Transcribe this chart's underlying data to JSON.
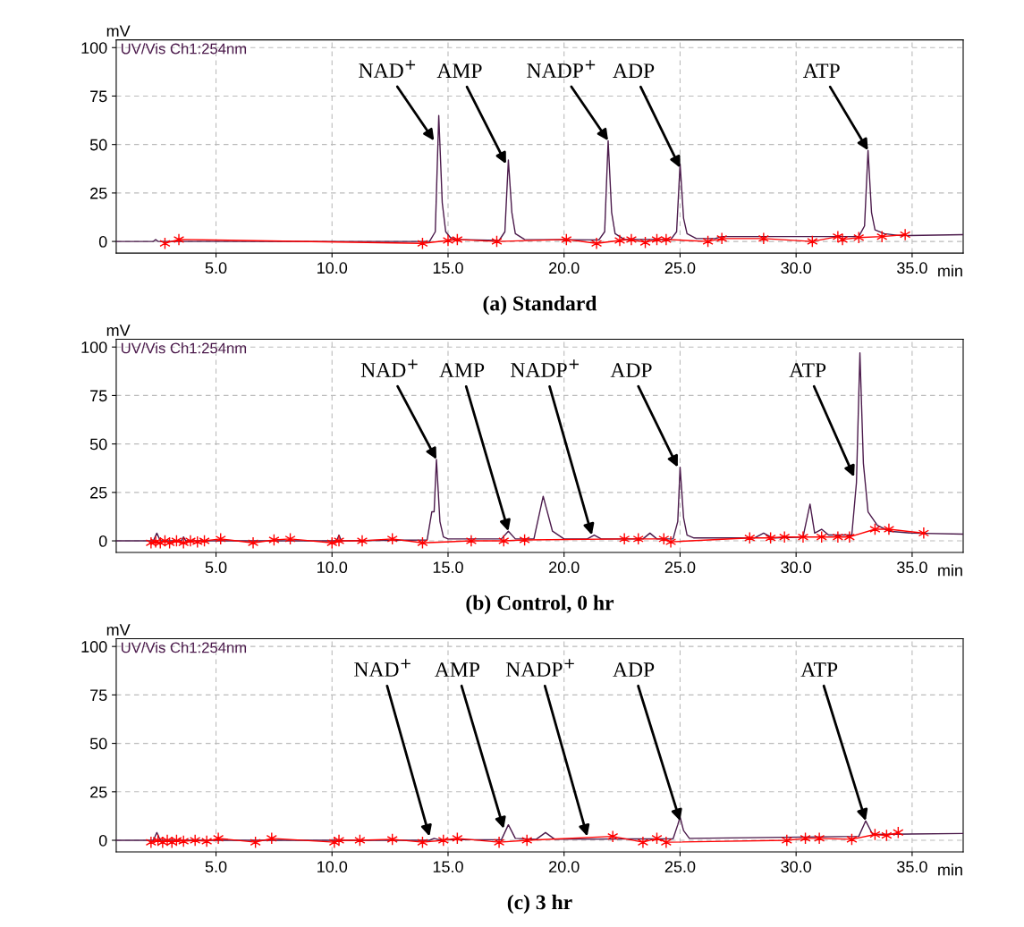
{
  "chart_data": [
    {
      "type": "line",
      "title": "(a) Standard",
      "xlabel": "min",
      "ylabel": "mV",
      "xlim": [
        0.7,
        37.2
      ],
      "ylim": [
        -6,
        104
      ],
      "xticks": [
        {
          "value": 5,
          "label": "5.0"
        },
        {
          "value": 10,
          "label": "10.0"
        },
        {
          "value": 15,
          "label": "15.0"
        },
        {
          "value": 20,
          "label": "20.0"
        },
        {
          "value": 25,
          "label": "25.0"
        },
        {
          "value": 30,
          "label": "30.0"
        },
        {
          "value": 35,
          "label": "35.0"
        }
      ],
      "yticks": [
        0,
        25,
        50,
        75,
        100
      ],
      "grid": true,
      "legend": false,
      "line_style": "solid",
      "series": [
        {
          "name": "UV/Vis Ch1:254nm",
          "color": "#4b1a4b",
          "marker": "none",
          "x": [
            0.7,
            2.3,
            2.4,
            2.5,
            14.2,
            14.45,
            14.6,
            14.75,
            14.9,
            15.1,
            15.3,
            17.2,
            17.45,
            17.6,
            17.75,
            17.9,
            18.3,
            21.5,
            21.75,
            21.9,
            22.05,
            22.2,
            22.6,
            24.6,
            24.85,
            25.0,
            25.15,
            25.3,
            25.7,
            26.5,
            26.8,
            32.7,
            32.95,
            33.1,
            33.25,
            33.4,
            33.8,
            34.5,
            37.2
          ],
          "values": [
            0,
            0,
            1,
            0,
            0,
            5,
            65,
            20,
            5,
            2,
            1,
            0.5,
            5,
            42,
            15,
            4,
            1,
            0.8,
            5,
            52,
            15,
            4,
            1,
            1,
            5,
            40,
            12,
            4,
            1.5,
            1.5,
            2.5,
            2.5,
            8,
            47,
            15,
            6,
            4,
            3,
            3.5
          ]
        },
        {
          "color": "#ff0000",
          "marker": "cross",
          "x": [
            2.8,
            3.4,
            13.9,
            15.0,
            15.4,
            17.1,
            20.1,
            21.4,
            22.4,
            22.9,
            23.5,
            24.0,
            24.4,
            26.2,
            26.8,
            28.6,
            30.7,
            31.8,
            32.0,
            32.7,
            33.7,
            34.7
          ],
          "values": [
            -1,
            1,
            -1,
            0.5,
            1,
            0,
            1,
            -1,
            0.5,
            1,
            -0.5,
            1,
            1,
            0,
            1.5,
            1.5,
            0,
            2.5,
            1,
            2,
            2.5,
            3.5
          ]
        }
      ],
      "annotations": [
        {
          "text": "NAD$^{+}$",
          "x": 14.4,
          "y": 52
        },
        {
          "text": "AMP",
          "x": 17.5,
          "y": 40
        },
        {
          "text": "NADP$^{+}$",
          "x": 21.9,
          "y": 52
        },
        {
          "text": "ADP",
          "x": 25.0,
          "y": 38
        },
        {
          "text": "ATP",
          "x": 33.1,
          "y": 47
        }
      ]
    },
    {
      "type": "line",
      "title": "(b) Control, 0 hr",
      "xlabel": "min",
      "ylabel": "mV",
      "xlim": [
        0.7,
        37.2
      ],
      "ylim": [
        -6,
        104
      ],
      "xticks": [
        {
          "value": 5,
          "label": "5.0"
        },
        {
          "value": 10,
          "label": "10.0"
        },
        {
          "value": 15,
          "label": "15.0"
        },
        {
          "value": 20,
          "label": "20.0"
        },
        {
          "value": 25,
          "label": "25.0"
        },
        {
          "value": 30,
          "label": "30.0"
        },
        {
          "value": 35,
          "label": "35.0"
        }
      ],
      "yticks": [
        0,
        25,
        50,
        75,
        100
      ],
      "grid": true,
      "legend": false,
      "line_style": "solid",
      "series": [
        {
          "name": "UV/Vis Ch1:254nm",
          "color": "#4b1a4b",
          "marker": "none",
          "x": [
            0.7,
            2.3,
            2.45,
            2.6,
            3.5,
            3.6,
            3.7,
            10.2,
            10.3,
            10.4,
            14.1,
            14.3,
            14.4,
            14.5,
            14.65,
            14.8,
            15.0,
            17.3,
            17.6,
            17.9,
            18.7,
            19.1,
            19.5,
            20.0,
            21.0,
            21.3,
            21.6,
            23.4,
            23.7,
            24.0,
            24.7,
            24.9,
            25.0,
            25.15,
            25.3,
            25.6,
            28.2,
            28.6,
            29.0,
            30.3,
            30.6,
            30.8,
            31.1,
            31.4,
            32.4,
            32.6,
            32.75,
            32.9,
            33.1,
            33.5,
            34.0,
            35.0,
            37.2
          ],
          "values": [
            0,
            0,
            4,
            0,
            0,
            2,
            0,
            0,
            3,
            0,
            0.5,
            15,
            15,
            42,
            10,
            2,
            1,
            1,
            5,
            1,
            1,
            23,
            5,
            1,
            1,
            3,
            1,
            1,
            4,
            1,
            1,
            10,
            38,
            12,
            3,
            1.5,
            1.5,
            4,
            1.5,
            2,
            19,
            4,
            6,
            3,
            3,
            30,
            97,
            40,
            15,
            8,
            5,
            4,
            3.5
          ]
        },
        {
          "color": "#ff0000",
          "marker": "cross",
          "x": [
            2.2,
            2.4,
            2.6,
            2.8,
            3.0,
            3.3,
            3.6,
            3.9,
            4.2,
            4.5,
            5.2,
            6.6,
            7.5,
            8.2,
            10.0,
            10.3,
            11.3,
            12.6,
            13.9,
            16.0,
            17.4,
            18.3,
            22.6,
            23.2,
            24.3,
            24.6,
            28.0,
            28.9,
            29.5,
            30.3,
            31.1,
            31.8,
            32.3,
            33.4,
            34.0,
            35.5
          ],
          "values": [
            -1,
            -0.5,
            -1,
            0,
            -1,
            0,
            -1,
            0,
            -0.5,
            0,
            1,
            -1,
            0.5,
            1,
            -1,
            0,
            0,
            1,
            -1,
            0,
            0,
            0.5,
            1,
            1,
            1,
            -0.5,
            1.5,
            1.5,
            2,
            2,
            2,
            2,
            2,
            6,
            6,
            4
          ]
        }
      ],
      "annotations": [
        {
          "text": "NAD$^{+}$",
          "x": 14.5,
          "y": 42
        },
        {
          "text": "AMP",
          "x": 17.6,
          "y": 5
        },
        {
          "text": "NADP$^{+}$",
          "x": 21.2,
          "y": 3
        },
        {
          "text": "ADP",
          "x": 24.9,
          "y": 38
        },
        {
          "text": "ATP",
          "x": 32.5,
          "y": 33
        }
      ]
    },
    {
      "type": "line",
      "title": "(c) 3 hr",
      "xlabel": "min",
      "ylabel": "mV",
      "xlim": [
        0.7,
        37.2
      ],
      "ylim": [
        -6,
        104
      ],
      "xticks": [
        {
          "value": 5,
          "label": "5.0"
        },
        {
          "value": 10,
          "label": "10.0"
        },
        {
          "value": 15,
          "label": "15.0"
        },
        {
          "value": 20,
          "label": "20.0"
        },
        {
          "value": 25,
          "label": "25.0"
        },
        {
          "value": 30,
          "label": "30.0"
        },
        {
          "value": 35,
          "label": "35.0"
        }
      ],
      "yticks": [
        0,
        25,
        50,
        75,
        100
      ],
      "grid": true,
      "legend": false,
      "line_style": "solid",
      "series": [
        {
          "name": "UV/Vis Ch1:254nm",
          "color": "#4b1a4b",
          "marker": "none",
          "x": [
            0.7,
            2.3,
            2.45,
            2.6,
            14.2,
            14.4,
            14.6,
            17.3,
            17.6,
            17.9,
            18.8,
            19.2,
            19.6,
            24.7,
            24.9,
            25.0,
            25.15,
            25.4,
            32.7,
            33.0,
            33.3,
            37.2
          ],
          "values": [
            0,
            0,
            4,
            0,
            0,
            1,
            0.3,
            0.3,
            8,
            1,
            0.5,
            4,
            0.5,
            0.8,
            8,
            12,
            5,
            1,
            2,
            10,
            3,
            3.5
          ]
        },
        {
          "color": "#ff0000",
          "marker": "cross",
          "x": [
            2.2,
            2.5,
            2.7,
            2.9,
            3.1,
            3.3,
            3.6,
            4.1,
            4.6,
            5.1,
            6.7,
            7.4,
            10.1,
            10.3,
            11.2,
            12.6,
            13.9,
            14.8,
            15.4,
            17.2,
            18.4,
            22.1,
            23.4,
            24.0,
            24.4,
            29.6,
            30.4,
            31.0,
            32.4,
            33.4,
            33.9,
            34.4
          ],
          "values": [
            -1,
            0,
            -1,
            0,
            -1,
            0,
            -0.5,
            0,
            -0.5,
            1,
            -1,
            1,
            -1,
            0,
            0,
            0.5,
            -1,
            0,
            1,
            -1,
            0,
            2,
            -1,
            1,
            -1,
            0,
            1,
            1,
            0.5,
            3,
            2.5,
            4
          ]
        }
      ],
      "annotations": [
        {
          "text": "NAD$^{+}$",
          "x": 14.2,
          "y": 2
        },
        {
          "text": "AMP",
          "x": 17.4,
          "y": 6
        },
        {
          "text": "NADP$^{+}$",
          "x": 21.0,
          "y": 2
        },
        {
          "text": "ADP",
          "x": 25.0,
          "y": 10
        },
        {
          "text": "ATP",
          "x": 33.0,
          "y": 10
        }
      ]
    }
  ]
}
